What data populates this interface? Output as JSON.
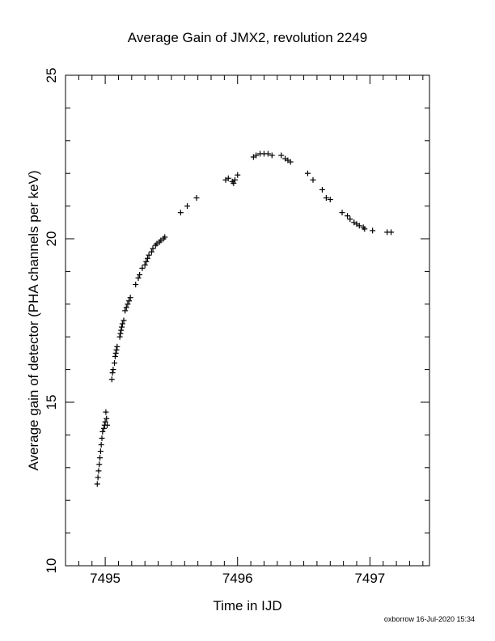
{
  "chart_data": {
    "type": "scatter",
    "title": "Average Gain of JMX2, revolution 2249",
    "xlabel": "Time in IJD",
    "ylabel": "Average gain of detector (PHA channels per keV)",
    "xlim": [
      7494.7,
      7497.45
    ],
    "ylim": [
      10,
      25
    ],
    "x_ticks": [
      7495,
      7496,
      7497
    ],
    "x_tick_labels": [
      "7495",
      "7496",
      "7497"
    ],
    "y_ticks": [
      10,
      15,
      20,
      25
    ],
    "y_tick_labels": [
      "10",
      "15",
      "20",
      "25"
    ],
    "marker": "plus",
    "grid": false,
    "legend": "none",
    "footer": "oxborrow 16-Jul-2020 15:34",
    "x": [
      7494.94,
      7494.945,
      7494.95,
      7494.955,
      7494.96,
      7494.965,
      7494.97,
      7494.975,
      7494.98,
      7494.99,
      7494.995,
      7495.0,
      7495.005,
      7495.01,
      7495.015,
      7495.05,
      7495.055,
      7495.06,
      7495.07,
      7495.075,
      7495.08,
      7495.085,
      7495.09,
      7495.11,
      7495.115,
      7495.12,
      7495.125,
      7495.13,
      7495.14,
      7495.15,
      7495.16,
      7495.17,
      7495.18,
      7495.19,
      7495.23,
      7495.25,
      7495.26,
      7495.28,
      7495.3,
      7495.31,
      7495.32,
      7495.33,
      7495.35,
      7495.36,
      7495.38,
      7495.39,
      7495.41,
      7495.42,
      7495.44,
      7495.45,
      7495.57,
      7495.62,
      7495.69,
      7495.91,
      7495.93,
      7495.96,
      7495.97,
      7495.98,
      7496.0,
      7496.12,
      7496.14,
      7496.17,
      7496.2,
      7496.23,
      7496.26,
      7496.33,
      7496.36,
      7496.38,
      7496.4,
      7496.53,
      7496.57,
      7496.64,
      7496.67,
      7496.7,
      7496.79,
      7496.83,
      7496.85,
      7496.88,
      7496.9,
      7496.92,
      7496.95,
      7496.96,
      7497.02,
      7497.13,
      7497.16
    ],
    "y": [
      12.5,
      12.7,
      12.9,
      13.1,
      13.3,
      13.5,
      13.7,
      13.9,
      14.1,
      14.2,
      14.3,
      14.4,
      14.7,
      14.5,
      14.3,
      15.7,
      15.9,
      16.0,
      16.2,
      16.4,
      16.5,
      16.6,
      16.7,
      17.0,
      17.1,
      17.2,
      17.3,
      17.4,
      17.5,
      17.8,
      17.9,
      18.0,
      18.1,
      18.2,
      18.6,
      18.8,
      18.9,
      19.1,
      19.2,
      19.3,
      19.4,
      19.5,
      19.6,
      19.7,
      19.8,
      19.85,
      19.9,
      19.95,
      20.0,
      20.05,
      20.8,
      21.0,
      21.25,
      21.8,
      21.85,
      21.75,
      21.7,
      21.8,
      21.95,
      22.5,
      22.55,
      22.6,
      22.6,
      22.6,
      22.55,
      22.55,
      22.45,
      22.4,
      22.35,
      22.0,
      21.8,
      21.5,
      21.25,
      21.2,
      20.8,
      20.7,
      20.6,
      20.5,
      20.45,
      20.4,
      20.35,
      20.3,
      20.25,
      20.2,
      20.2
    ]
  }
}
